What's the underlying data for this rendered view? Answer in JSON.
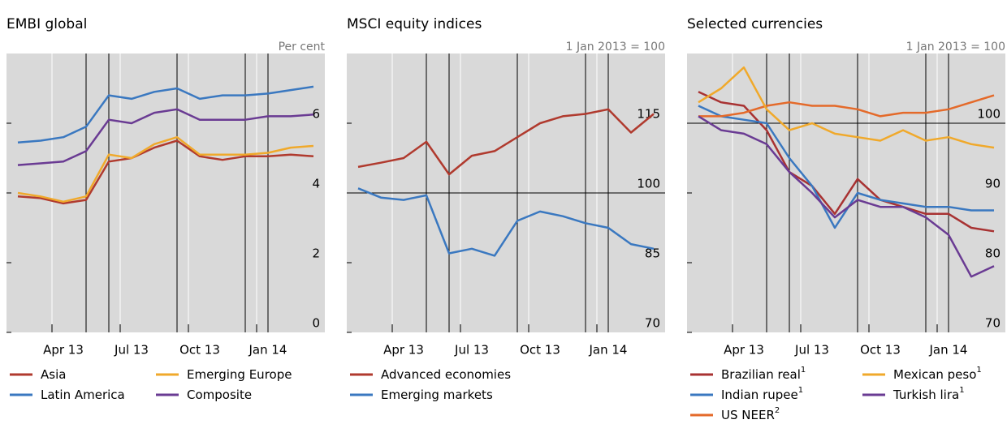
{
  "chart_data": [
    {
      "type": "line",
      "title": "EMBI global",
      "unit_label": "Per cent",
      "x": [
        "2013-02",
        "2013-03",
        "2013-04",
        "2013-05",
        "2013-06",
        "2013-07",
        "2013-08",
        "2013-09",
        "2013-10",
        "2013-11",
        "2013-12",
        "2014-01",
        "2014-02",
        "2014-03"
      ],
      "xlim": [
        "2013-02",
        "2014-04"
      ],
      "xticks": [
        {
          "value": "2013-04",
          "label": "Apr 13"
        },
        {
          "value": "2013-07",
          "label": "Jul 13"
        },
        {
          "value": "2013-10",
          "label": "Oct 13"
        },
        {
          "value": "2014-01",
          "label": "Jan 14"
        }
      ],
      "ylim": [
        0,
        8
      ],
      "yticks": [
        0,
        2,
        4,
        6
      ],
      "event_lines": [
        "2013-05",
        "2013-06",
        "2013-09",
        "2013-12",
        "2014-01"
      ],
      "legend_columns": 2,
      "series": [
        {
          "name": "Asia",
          "color": "#b03a2e",
          "values": [
            3.9,
            3.85,
            3.7,
            3.8,
            4.9,
            5.0,
            5.3,
            5.5,
            5.05,
            4.95,
            5.05,
            5.05,
            5.1,
            5.05
          ]
        },
        {
          "name": "Latin America",
          "color": "#3a78c0",
          "values": [
            5.45,
            5.5,
            5.6,
            5.9,
            6.8,
            6.7,
            6.9,
            7.0,
            6.7,
            6.8,
            6.8,
            6.85,
            6.95,
            7.05
          ]
        },
        {
          "name": "Emerging Europe",
          "color": "#f0a92b",
          "values": [
            4.0,
            3.9,
            3.75,
            3.9,
            5.1,
            5.0,
            5.4,
            5.6,
            5.1,
            5.1,
            5.1,
            5.15,
            5.3,
            5.35
          ]
        },
        {
          "name": "Composite",
          "color": "#6a3b93",
          "values": [
            4.8,
            4.85,
            4.9,
            5.2,
            6.1,
            6.0,
            6.3,
            6.4,
            6.1,
            6.1,
            6.1,
            6.2,
            6.2,
            6.25
          ]
        }
      ]
    },
    {
      "type": "line",
      "title": "MSCI equity indices",
      "unit_label": "1 Jan 2013 = 100",
      "x": [
        "2013-02",
        "2013-03",
        "2013-04",
        "2013-05",
        "2013-06",
        "2013-07",
        "2013-08",
        "2013-09",
        "2013-10",
        "2013-11",
        "2013-12",
        "2014-01",
        "2014-02",
        "2014-03"
      ],
      "xlim": [
        "2013-02",
        "2014-04"
      ],
      "xticks": [
        {
          "value": "2013-04",
          "label": "Apr 13"
        },
        {
          "value": "2013-07",
          "label": "Jul 13"
        },
        {
          "value": "2013-10",
          "label": "Oct 13"
        },
        {
          "value": "2014-01",
          "label": "Jan 14"
        }
      ],
      "ylim": [
        70,
        130
      ],
      "yticks": [
        70,
        85,
        100,
        115
      ],
      "reference_line": 100,
      "event_lines": [
        "2013-05",
        "2013-06",
        "2013-09",
        "2013-12",
        "2014-01"
      ],
      "legend_columns": 1,
      "series": [
        {
          "name": "Advanced economies",
          "color": "#b03a2e",
          "values": [
            105.6,
            106.5,
            107.5,
            111,
            104,
            108,
            109,
            112,
            115,
            116.5,
            117,
            118,
            113,
            117
          ]
        },
        {
          "name": "Emerging markets",
          "color": "#3a78c0",
          "values": [
            101,
            99,
            98.5,
            99.5,
            87,
            88,
            86.5,
            94,
            96,
            95,
            93.5,
            92.5,
            89,
            88
          ]
        }
      ]
    },
    {
      "type": "line",
      "title": "Selected currencies",
      "unit_label": "1 Jan 2013 = 100",
      "x": [
        "2013-02",
        "2013-03",
        "2013-04",
        "2013-05",
        "2013-06",
        "2013-07",
        "2013-08",
        "2013-09",
        "2013-10",
        "2013-11",
        "2013-12",
        "2014-01",
        "2014-02",
        "2014-03"
      ],
      "xlim": [
        "2013-02",
        "2014-04"
      ],
      "xticks": [
        {
          "value": "2013-04",
          "label": "Apr 13"
        },
        {
          "value": "2013-07",
          "label": "Jul 13"
        },
        {
          "value": "2013-10",
          "label": "Oct 13"
        },
        {
          "value": "2014-01",
          "label": "Jan 14"
        }
      ],
      "ylim": [
        70,
        110
      ],
      "yticks": [
        70,
        80,
        90,
        100
      ],
      "reference_line": 100,
      "event_lines": [
        "2013-05",
        "2013-06",
        "2013-09",
        "2013-12",
        "2014-01"
      ],
      "legend_columns": 2,
      "series": [
        {
          "name": "Brazilian real",
          "footnote": "1",
          "color": "#a83232",
          "values": [
            104.5,
            103,
            102.5,
            99,
            93,
            91,
            87,
            92,
            89,
            88,
            87,
            87,
            85,
            84.5
          ]
        },
        {
          "name": "Indian rupee",
          "footnote": "1",
          "color": "#3a78c0",
          "values": [
            102.5,
            101,
            100.5,
            100,
            95,
            91,
            85,
            90,
            89,
            88.5,
            88,
            88,
            87.5,
            87.5
          ]
        },
        {
          "name": "US NEER",
          "footnote": "2",
          "color": "#e46a2a",
          "values": [
            101,
            101,
            101.5,
            102.5,
            103,
            102.5,
            102.5,
            102,
            101,
            101.5,
            101.5,
            102,
            103,
            104
          ]
        },
        {
          "name": "Mexican peso",
          "footnote": "1",
          "color": "#f0a92b",
          "values": [
            103,
            105,
            108,
            102,
            99,
            100,
            98.5,
            98,
            97.5,
            99,
            97.5,
            98,
            97,
            96.5
          ]
        },
        {
          "name": "Turkish lira",
          "footnote": "1",
          "color": "#6a3b93",
          "values": [
            101,
            99,
            98.5,
            97,
            93,
            90,
            86.5,
            89,
            88,
            88,
            86.5,
            84,
            78,
            79.5
          ]
        }
      ]
    }
  ]
}
